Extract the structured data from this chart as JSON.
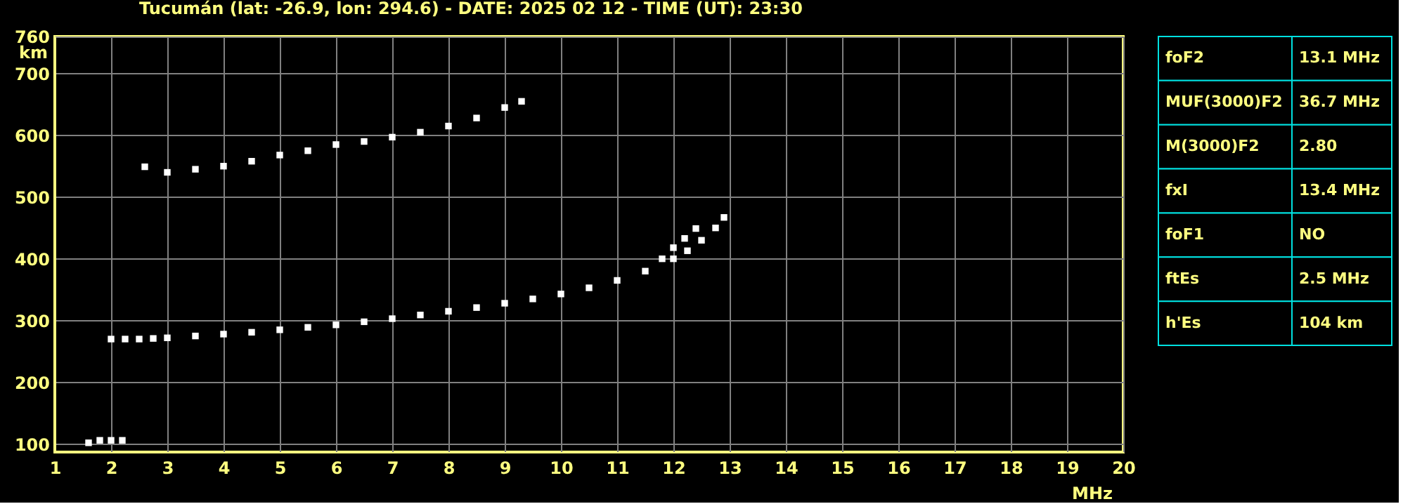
{
  "chart_data": [
    {
      "type": "scatter",
      "title": "Tucumán (lat: -26.9, lon: 294.6) - DATE: 2025 02 12 - TIME (UT): 23:30",
      "xlabel": "MHz",
      "ylabel": "km",
      "marker": "square",
      "grid": true,
      "legend": false,
      "xlim": [
        1,
        20
      ],
      "ylim": [
        87,
        760
      ],
      "xticks": [
        1,
        2,
        3,
        4,
        5,
        6,
        7,
        8,
        9,
        10,
        11,
        12,
        13,
        14,
        15,
        16,
        17,
        18,
        19,
        20
      ],
      "yticks": [
        100,
        200,
        300,
        400,
        500,
        600,
        700,
        760
      ],
      "series": [
        {
          "color": "#ffffff",
          "x": [
            2.0,
            2.25,
            2.5,
            2.75,
            3.0,
            3.5,
            4.0,
            4.5,
            5.0,
            5.5,
            6.0,
            6.5,
            7.0,
            7.5,
            8.0,
            8.5,
            9.0,
            9.5,
            10.0,
            10.5,
            11.0,
            11.5,
            12.0,
            12.25,
            12.5,
            12.75,
            12.9
          ],
          "values": [
            270,
            270,
            270,
            271,
            272,
            275,
            278,
            281,
            285,
            289,
            293,
            298,
            303,
            309,
            315,
            321,
            328,
            335,
            343,
            353,
            365,
            380,
            400,
            413,
            430,
            450,
            467
          ]
        },
        {
          "color": "#ffffff",
          "x": [
            11.8,
            12.0,
            12.2,
            12.4
          ],
          "values": [
            400,
            418,
            433,
            449
          ]
        },
        {
          "color": "#ffffff",
          "x": [
            2.6,
            3.0,
            3.5,
            4.0,
            4.5,
            5.0,
            5.5,
            6.0,
            6.5,
            7.0,
            7.5,
            8.0,
            8.5,
            9.0,
            9.3
          ],
          "values": [
            549,
            540,
            545,
            550,
            558,
            568,
            575,
            585,
            590,
            597,
            605,
            615,
            628,
            645,
            655
          ]
        },
        {
          "color": "#ffffff",
          "x": [
            1.6,
            1.8,
            2.0,
            2.2
          ],
          "values": [
            102,
            106,
            106,
            106
          ]
        }
      ]
    },
    {
      "type": "other",
      "categories": [
        "foF2",
        "MUF(3000)F2",
        "M(3000)F2",
        "fxI",
        "foF1",
        "ftEs",
        "h'Es"
      ],
      "value_labels": [
        "13.1 MHz",
        "36.7 MHz",
        "2.80",
        "13.4 MHz",
        "NO",
        "2.5 MHz",
        "104 km"
      ]
    }
  ]
}
